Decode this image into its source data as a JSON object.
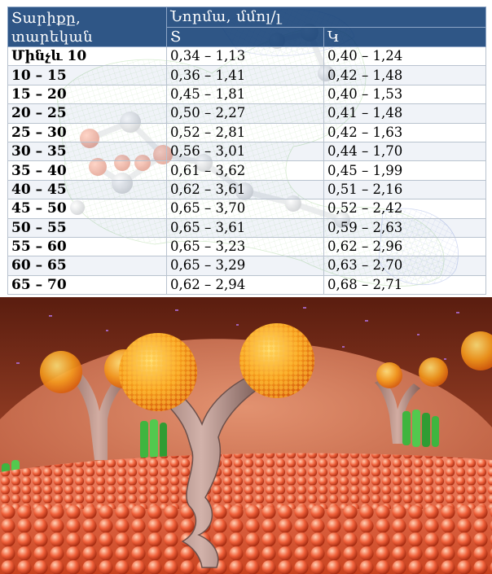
{
  "table": {
    "header": {
      "age_col_line1": "Տարիքը,",
      "age_col_line2": "տարեկան",
      "norm_group": "Նորմա, մմոլ/լ",
      "female_col": "Տ",
      "male_col": "Կ"
    },
    "rows": [
      {
        "age": "Մինչև 10",
        "female": "0,34 – 1,13",
        "male": "0,40 – 1,24"
      },
      {
        "age": "10 – 15",
        "female": "0,36 – 1,41",
        "male": "0,42 – 1,48"
      },
      {
        "age": "15 – 20",
        "female": "0,45 – 1,81",
        "male": "0,40 – 1,53"
      },
      {
        "age": "20 – 25",
        "female": "0,50 – 2,27",
        "male": "0,41 – 1,48"
      },
      {
        "age": "25 – 30",
        "female": "0,52 – 2,81",
        "male": "0,42 – 1,63"
      },
      {
        "age": "30 – 35",
        "female": "0,56 – 3,01",
        "male": "0,44 – 1,70"
      },
      {
        "age": "35 – 40",
        "female": "0,61 – 3,62",
        "male": "0,45 – 1,99"
      },
      {
        "age": "40 – 45",
        "female": "0,62 – 3,61",
        "male": "0,51 – 2,16"
      },
      {
        "age": "45 – 50",
        "female": "0,65 – 3,70",
        "male": "0,52 – 2,42"
      },
      {
        "age": "50 – 55",
        "female": "0,65 – 3,61",
        "male": "0,59 – 2,63"
      },
      {
        "age": "55 – 60",
        "female": "0,65 – 3,23",
        "male": "0,62 – 2,96"
      },
      {
        "age": "60 – 65",
        "female": "0,65 – 3,29",
        "male": "0,63 – 2,70"
      },
      {
        "age": "65 – 70",
        "female": "0,62 – 2,94",
        "male": "0,68 – 2,71"
      }
    ]
  },
  "colors": {
    "header_bg": "#1f497d",
    "header_text": "#ffffff",
    "membrane": "#e8603c",
    "antibody": "#b8968e",
    "antigen": "#f59a1c",
    "receptor": "#3fb53f"
  }
}
